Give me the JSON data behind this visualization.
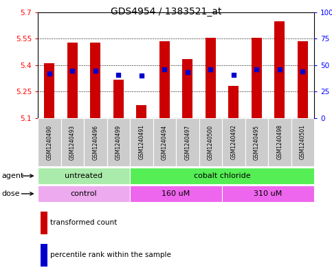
{
  "title": "GDS4954 / 1383521_at",
  "samples": [
    "GSM1240490",
    "GSM1240493",
    "GSM1240496",
    "GSM1240499",
    "GSM1240491",
    "GSM1240494",
    "GSM1240497",
    "GSM1240500",
    "GSM1240492",
    "GSM1240495",
    "GSM1240498",
    "GSM1240501"
  ],
  "bar_values": [
    5.41,
    5.53,
    5.53,
    5.32,
    5.175,
    5.535,
    5.435,
    5.555,
    5.285,
    5.555,
    5.65,
    5.535
  ],
  "bar_base": 5.1,
  "percentile_values": [
    5.355,
    5.37,
    5.37,
    5.345,
    5.34,
    5.375,
    5.36,
    5.375,
    5.345,
    5.375,
    5.375,
    5.365
  ],
  "ylim_left": [
    5.1,
    5.7
  ],
  "ylim_right": [
    0,
    100
  ],
  "yticks_left": [
    5.1,
    5.25,
    5.4,
    5.55,
    5.7
  ],
  "yticks_right": [
    0,
    25,
    50,
    75,
    100
  ],
  "ytick_labels_left": [
    "5.1",
    "5.25",
    "5.4",
    "5.55",
    "5.7"
  ],
  "ytick_labels_right": [
    "0",
    "25",
    "50",
    "75",
    "100%"
  ],
  "dotted_lines": [
    5.25,
    5.4,
    5.55,
    5.7
  ],
  "bar_color": "#cc0000",
  "percentile_color": "#0000cc",
  "agent_groups": [
    {
      "label": "untreated",
      "start": 0,
      "end": 4,
      "color": "#aaeaaa"
    },
    {
      "label": "cobalt chloride",
      "start": 4,
      "end": 12,
      "color": "#55ee55"
    }
  ],
  "dose_groups": [
    {
      "label": "control",
      "start": 0,
      "end": 4,
      "color": "#eeaaee"
    },
    {
      "label": "160 uM",
      "start": 4,
      "end": 8,
      "color": "#ee66ee"
    },
    {
      "label": "310 uM",
      "start": 8,
      "end": 12,
      "color": "#ee66ee"
    }
  ],
  "legend_bar_label": "transformed count",
  "legend_pct_label": "percentile rank within the sample",
  "tick_bg_color": "#cccccc"
}
